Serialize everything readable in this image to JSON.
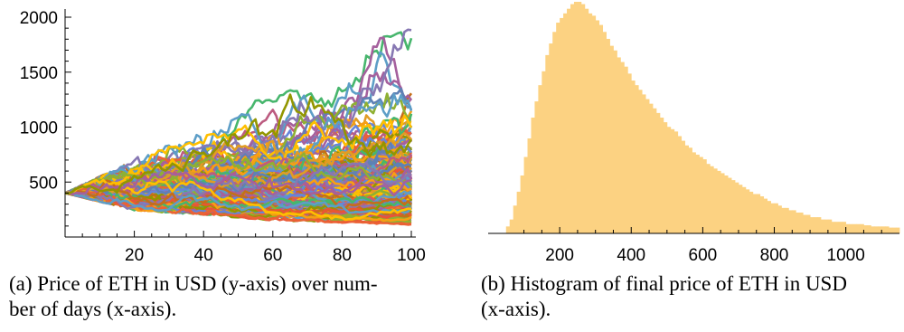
{
  "chart_data": [
    {
      "type": "line",
      "title": "",
      "xlabel": "",
      "ylabel": "",
      "xlim": [
        0,
        100
      ],
      "ylim": [
        0,
        2000
      ],
      "x_ticks": [
        20,
        40,
        60,
        80,
        100
      ],
      "y_ticks": [
        500,
        1000,
        1500,
        2000
      ],
      "x_tick_labels": [
        "20",
        "40",
        "60",
        "80",
        "100"
      ],
      "y_tick_labels": [
        "500",
        "1000",
        "1500",
        "2000"
      ],
      "num_series_visible": "many",
      "start_value": 400,
      "envelope": {
        "x": [
          0,
          20,
          40,
          60,
          80,
          100
        ],
        "upper": [
          400,
          700,
          1250,
          1250,
          1720,
          1900
        ],
        "lower": [
          400,
          240,
          200,
          150,
          130,
          110
        ]
      },
      "legend": "none",
      "grid": false
    },
    {
      "type": "bar",
      "subtype": "histogram",
      "title": "",
      "xlabel": "",
      "ylabel": "",
      "xlim": [
        0,
        1150
      ],
      "x_ticks": [
        200,
        400,
        600,
        800,
        1000
      ],
      "x_tick_labels": [
        "200",
        "400",
        "600",
        "800",
        "1000"
      ],
      "bar_color": "#fcd282",
      "bin_width": 10,
      "bins_start": 50,
      "relative_frequencies": [
        0.03,
        0.06,
        0.12,
        0.18,
        0.25,
        0.33,
        0.41,
        0.5,
        0.57,
        0.64,
        0.7,
        0.77,
        0.82,
        0.87,
        0.91,
        0.93,
        0.95,
        0.97,
        0.99,
        1.0,
        1.0,
        0.99,
        0.97,
        0.95,
        0.94,
        0.92,
        0.9,
        0.87,
        0.84,
        0.81,
        0.79,
        0.76,
        0.74,
        0.72,
        0.69,
        0.66,
        0.64,
        0.62,
        0.6,
        0.58,
        0.56,
        0.54,
        0.52,
        0.5,
        0.48,
        0.46,
        0.45,
        0.44,
        0.42,
        0.4,
        0.38,
        0.37,
        0.35,
        0.34,
        0.33,
        0.32,
        0.3,
        0.29,
        0.28,
        0.27,
        0.26,
        0.25,
        0.24,
        0.23,
        0.22,
        0.21,
        0.2,
        0.19,
        0.18,
        0.17,
        0.17,
        0.16,
        0.15,
        0.14,
        0.13,
        0.13,
        0.12,
        0.11,
        0.11,
        0.1,
        0.1,
        0.09,
        0.09,
        0.08,
        0.08,
        0.07,
        0.07,
        0.07,
        0.06,
        0.06,
        0.06,
        0.05,
        0.05,
        0.05,
        0.05,
        0.04,
        0.04,
        0.04,
        0.04,
        0.04,
        0.035,
        0.035,
        0.03,
        0.03,
        0.03,
        0.03,
        0.03,
        0.025,
        0.025,
        0.025
      ],
      "legend": "none",
      "grid": false
    }
  ],
  "captions": {
    "a": "(a) Price of ETH in USD (y-axis) over num-\nber of days (x-axis).",
    "b": "(b) Histogram of final price of ETH in USD\n(x-axis)."
  },
  "colors": {
    "axis": "#000000",
    "series_palette": [
      "#5e81b5",
      "#e19c24",
      "#8fb032",
      "#eb6235",
      "#8778b3",
      "#c56e1a",
      "#5d9ec7",
      "#ffbf00",
      "#a5609d",
      "#929600",
      "#e95536",
      "#6685d9",
      "#f89f13",
      "#bc5b80",
      "#47b66d"
    ]
  }
}
